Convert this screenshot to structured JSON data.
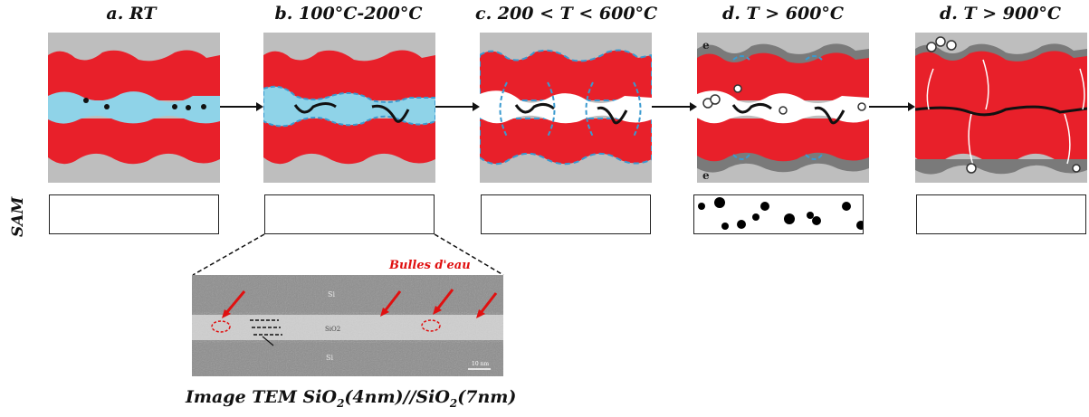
{
  "stages": [
    {
      "title": "a. RT"
    },
    {
      "title": "b. 100°C-200°C"
    },
    {
      "title": "c. 200 < T < 600°C"
    },
    {
      "title": "d. T > 600°C"
    },
    {
      "title": "d. T > 900°C"
    }
  ],
  "sam_label": "SAM",
  "panel_labels": {
    "electron_top": "e",
    "electron_bottom": "e"
  },
  "tem": {
    "bubbles_label": "Bulles d'eau",
    "si_top": "Si",
    "si_bottom": "Si",
    "oxide": "SiO2",
    "scale": "10 nm"
  },
  "caption": {
    "prefix": "Image TEM SiO",
    "sub1": "2",
    "mid": "(4nm)//SiO",
    "sub2": "2",
    "suffix": "(7nm)"
  },
  "colors": {
    "wafer": "#e8202a",
    "gap": "#bebebe",
    "water": "#8fd3e8",
    "oxide_grey": "#7a7a7a",
    "bubble_red": "#e01010"
  }
}
